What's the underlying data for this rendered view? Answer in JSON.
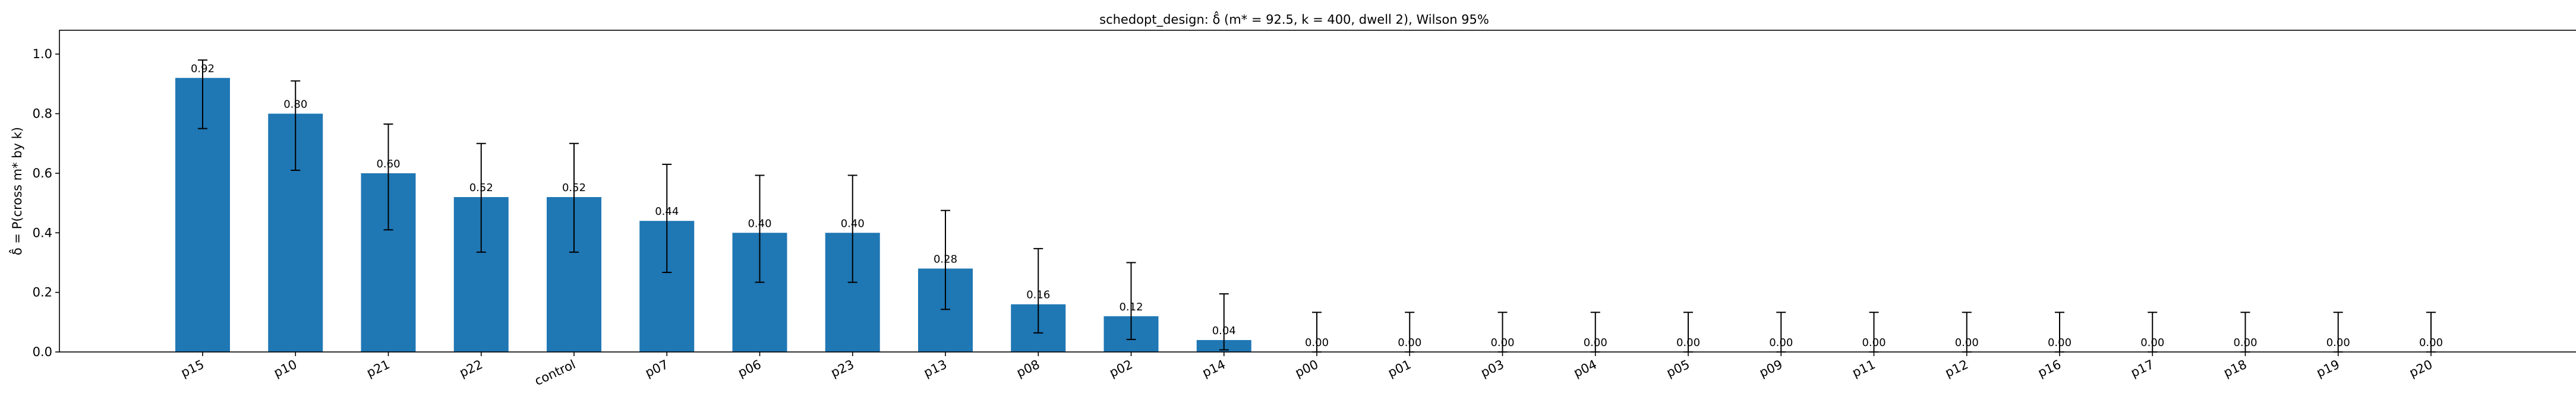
{
  "chart_data": {
    "type": "bar",
    "title": "schedopt_design: δ̂ (m* = 92.5, k = 400, dwell 2), Wilson 95%",
    "xlabel": "",
    "ylabel": "δ̂ = P(cross m* by k)",
    "ylim": [
      0.0,
      1.08
    ],
    "yticks": [
      0.0,
      0.2,
      0.4,
      0.6,
      0.8,
      1.0
    ],
    "ytick_labels": [
      "0.0",
      "0.2",
      "0.4",
      "0.6",
      "0.8",
      "1.0"
    ],
    "grid": false,
    "bar_color": "#1f77b4",
    "categories": [
      "p15",
      "p10",
      "p21",
      "p22",
      "control",
      "p07",
      "p06",
      "p23",
      "p13",
      "p08",
      "p02",
      "p14",
      "p00",
      "p01",
      "p03",
      "p04",
      "p05",
      "p09",
      "p11",
      "p12",
      "p16",
      "p17",
      "p18",
      "p19",
      "p20"
    ],
    "values": [
      0.92,
      0.8,
      0.6,
      0.52,
      0.52,
      0.44,
      0.4,
      0.4,
      0.28,
      0.16,
      0.12,
      0.04,
      0.0,
      0.0,
      0.0,
      0.0,
      0.0,
      0.0,
      0.0,
      0.0,
      0.0,
      0.0,
      0.0,
      0.0,
      0.0
    ],
    "value_labels": [
      "0.92",
      "0.80",
      "0.60",
      "0.52",
      "0.52",
      "0.44",
      "0.40",
      "0.40",
      "0.28",
      "0.16",
      "0.12",
      "0.04",
      "0.00",
      "0.00",
      "0.00",
      "0.00",
      "0.00",
      "0.00",
      "0.00",
      "0.00",
      "0.00",
      "0.00",
      "0.00",
      "0.00",
      "0.00"
    ],
    "ci_lower": [
      0.75,
      0.61,
      0.41,
      0.335,
      0.335,
      0.267,
      0.234,
      0.234,
      0.143,
      0.064,
      0.042,
      0.007,
      0.0,
      0.0,
      0.0,
      0.0,
      0.0,
      0.0,
      0.0,
      0.0,
      0.0,
      0.0,
      0.0,
      0.0,
      0.0
    ],
    "ci_upper": [
      0.98,
      0.91,
      0.765,
      0.7,
      0.7,
      0.63,
      0.593,
      0.593,
      0.475,
      0.347,
      0.3,
      0.195,
      0.133,
      0.133,
      0.133,
      0.133,
      0.133,
      0.133,
      0.133,
      0.133,
      0.133,
      0.133,
      0.133,
      0.133,
      0.133
    ]
  }
}
